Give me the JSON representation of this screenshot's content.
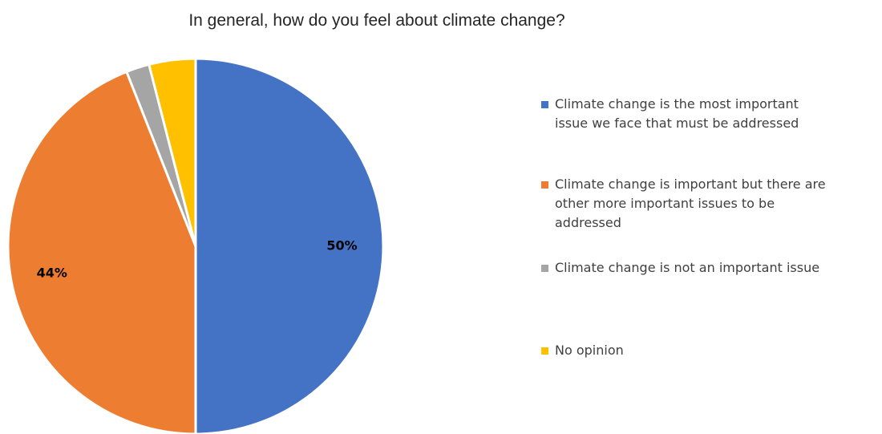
{
  "chart_data": {
    "type": "pie",
    "title": "In general, how do you feel about climate change?",
    "slices": [
      {
        "label": "Climate change is the most important issue we face that must be addressed",
        "value": 50,
        "data_label": "50%",
        "color": "#4472C4"
      },
      {
        "label": "Climate change is important but there are other more important issues to be addressed",
        "value": 44,
        "data_label": "44%",
        "color": "#ED7D31"
      },
      {
        "label": "Climate change is not an important issue",
        "value": 2,
        "data_label": "",
        "color": "#A5A5A5"
      },
      {
        "label": "No opinion",
        "value": 4,
        "data_label": "",
        "color": "#FFC000"
      }
    ],
    "legend_position": "right",
    "start_angle_deg": 0,
    "direction": "clockwise"
  }
}
